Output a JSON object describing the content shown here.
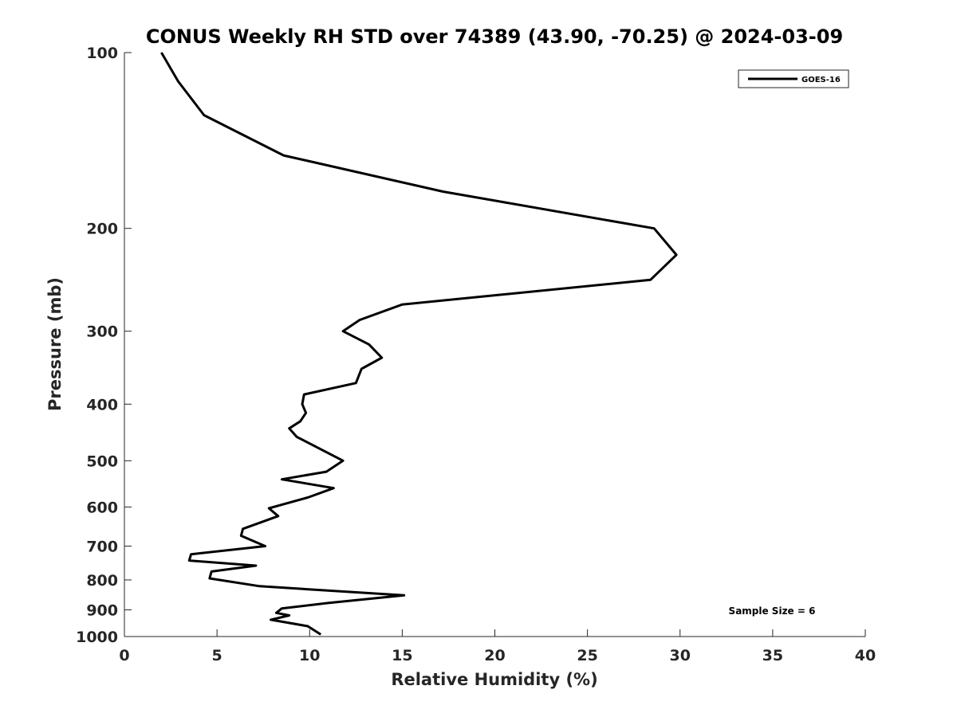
{
  "chart_data": {
    "type": "line",
    "title": "CONUS Weekly RH STD over 74389 (43.90, -70.25) @ 2024-03-09",
    "xlabel": "Relative Humidity (%)",
    "ylabel": "Pressure (mb)",
    "xlim": [
      0,
      40
    ],
    "ylim": [
      100,
      1000
    ],
    "y_scale": "log",
    "y_reversed": true,
    "x_ticks": [
      0,
      5,
      10,
      15,
      20,
      25,
      30,
      35,
      40
    ],
    "y_ticks": [
      100,
      200,
      300,
      400,
      500,
      600,
      700,
      800,
      900,
      1000
    ],
    "grid": false,
    "legend_position": "top-right",
    "series": [
      {
        "name": "GOES-16",
        "color": "#000000",
        "x": [
          2.0,
          2.9,
          4.3,
          8.6,
          17.2,
          28.6,
          29.8,
          28.4,
          15.0,
          12.7,
          11.8,
          13.2,
          13.9,
          12.8,
          12.5,
          9.7,
          9.6,
          9.8,
          9.5,
          8.9,
          9.3,
          11.8,
          10.9,
          8.5,
          11.3,
          9.9,
          7.8,
          8.3,
          6.4,
          6.3,
          7.6,
          3.6,
          3.5,
          7.1,
          4.7,
          4.6,
          7.3,
          15.1,
          11.0,
          8.5,
          8.2,
          8.9,
          7.9,
          9.9,
          10.6
        ],
        "y": [
          100,
          112,
          128,
          150,
          173,
          200,
          222,
          245,
          270,
          287,
          300,
          316,
          333,
          348,
          368,
          385,
          400,
          414,
          428,
          440,
          455,
          500,
          522,
          538,
          557,
          578,
          603,
          622,
          654,
          672,
          700,
          723,
          741,
          756,
          774,
          795,
          820,
          850,
          876,
          895,
          911,
          920,
          936,
          960,
          992
        ]
      }
    ],
    "annotations": [
      "Sample Size = 6"
    ]
  }
}
